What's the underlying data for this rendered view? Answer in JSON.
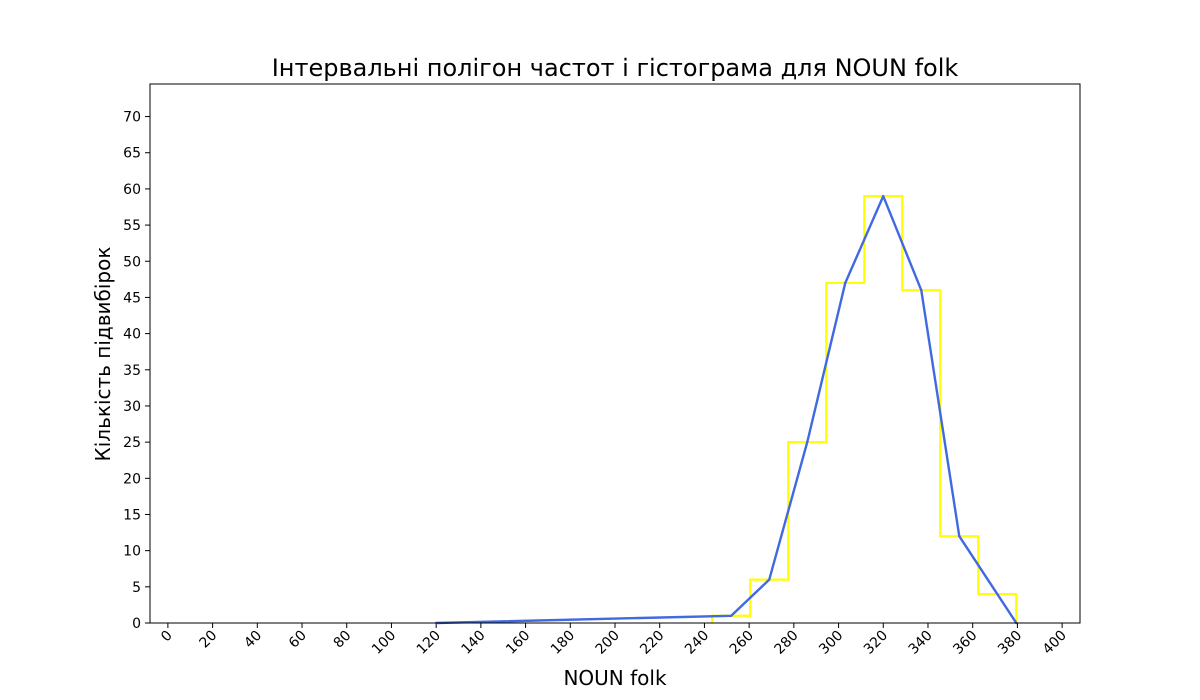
{
  "chart_data": {
    "type": "line",
    "title": "Інтервальні полігон частот і гістограма для NOUN folk",
    "xlabel": "NOUN folk",
    "ylabel": "Кількість підвибірок",
    "xlim": [
      -8,
      408
    ],
    "ylim": [
      0,
      74.5
    ],
    "xticks": [
      0,
      20,
      40,
      60,
      80,
      100,
      120,
      140,
      160,
      180,
      200,
      220,
      240,
      260,
      280,
      300,
      320,
      340,
      360,
      380,
      400
    ],
    "yticks": [
      0,
      5,
      10,
      15,
      20,
      25,
      30,
      35,
      40,
      45,
      50,
      55,
      60,
      65,
      70
    ],
    "grid": false,
    "histogram": {
      "name": "",
      "color": "#ffff00",
      "bins": [
        {
          "x0": 243.5,
          "x1": 260.5,
          "value": 1
        },
        {
          "x0": 260.5,
          "x1": 277.5,
          "value": 6
        },
        {
          "x0": 277.5,
          "x1": 294.5,
          "value": 25
        },
        {
          "x0": 294.5,
          "x1": 311.5,
          "value": 47
        },
        {
          "x0": 311.5,
          "x1": 328.5,
          "value": 59
        },
        {
          "x0": 328.5,
          "x1": 345.5,
          "value": 46
        },
        {
          "x0": 345.5,
          "x1": 362.5,
          "value": 12
        },
        {
          "x0": 362.5,
          "x1": 379.5,
          "value": 4
        }
      ]
    },
    "series": [
      {
        "name": "",
        "color": "#4169e1",
        "x": [
          120,
          252,
          269,
          286,
          303,
          320,
          337,
          354,
          379.5
        ],
        "y": [
          0,
          1,
          6,
          25,
          47,
          59,
          46,
          12,
          0
        ]
      }
    ]
  }
}
